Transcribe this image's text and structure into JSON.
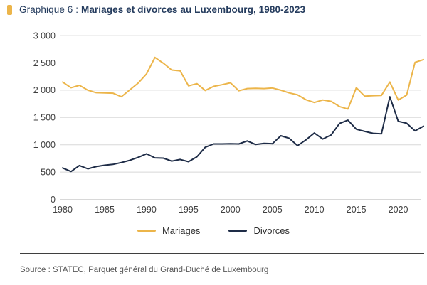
{
  "header": {
    "prefix": "Graphique 6 : ",
    "title": "Mariages et divorces au Luxembourg, 1980-2023",
    "marker_color": "#ecb54a"
  },
  "legend": [
    {
      "label": "Mariages",
      "color": "#ecb54a"
    },
    {
      "label": "Divorces",
      "color": "#1e2c47"
    }
  ],
  "footer": {
    "source": "Source : STATEC, Parquet général du Grand-Duché de Luxembourg"
  },
  "chart_data": {
    "type": "line",
    "title": "Mariages et divorces au Luxembourg, 1980-2023",
    "xlabel": "",
    "ylabel": "",
    "ylim": [
      0,
      3000
    ],
    "grid": "horizontal",
    "grid_color": "#d8d8d8",
    "axis_text_color": "#3f3f3f",
    "legend_position": "bottom",
    "yticks": [
      0,
      500,
      1000,
      1500,
      2000,
      2500,
      3000
    ],
    "ytick_labels": [
      "0",
      "500",
      "1 000",
      "1 500",
      "2 000",
      "2 500",
      "3 000"
    ],
    "xticks": [
      1980,
      1985,
      1990,
      1995,
      2000,
      2005,
      2010,
      2015,
      2020
    ],
    "years": [
      1980,
      1981,
      1982,
      1983,
      1984,
      1985,
      1986,
      1987,
      1988,
      1989,
      1990,
      1991,
      1992,
      1993,
      1994,
      1995,
      1996,
      1997,
      1998,
      1999,
      2000,
      2001,
      2002,
      2003,
      2004,
      2005,
      2006,
      2007,
      2008,
      2009,
      2010,
      2011,
      2012,
      2013,
      2014,
      2015,
      2016,
      2017,
      2018,
      2019,
      2020,
      2021,
      2022,
      2023
    ],
    "series": [
      {
        "name": "Mariages",
        "color": "#ecb54a",
        "values": [
          2150,
          2045,
          2090,
          2000,
          1955,
          1950,
          1945,
          1880,
          2005,
          2130,
          2300,
          2600,
          2495,
          2370,
          2355,
          2080,
          2120,
          1995,
          2070,
          2100,
          2135,
          1990,
          2030,
          2035,
          2030,
          2040,
          2000,
          1950,
          1915,
          1825,
          1775,
          1820,
          1795,
          1700,
          1655,
          2045,
          1890,
          1900,
          1905,
          2150,
          1820,
          1910,
          2510,
          2560
        ]
      },
      {
        "name": "Divorces",
        "color": "#1e2c47",
        "values": [
          575,
          510,
          620,
          560,
          600,
          625,
          640,
          675,
          715,
          770,
          835,
          760,
          755,
          700,
          730,
          690,
          780,
          955,
          1015,
          1015,
          1020,
          1015,
          1070,
          1005,
          1025,
          1020,
          1165,
          1120,
          985,
          1090,
          1215,
          1105,
          1180,
          1390,
          1450,
          1285,
          1245,
          1210,
          1200,
          1880,
          1430,
          1395,
          1255,
          1340
        ]
      }
    ]
  }
}
